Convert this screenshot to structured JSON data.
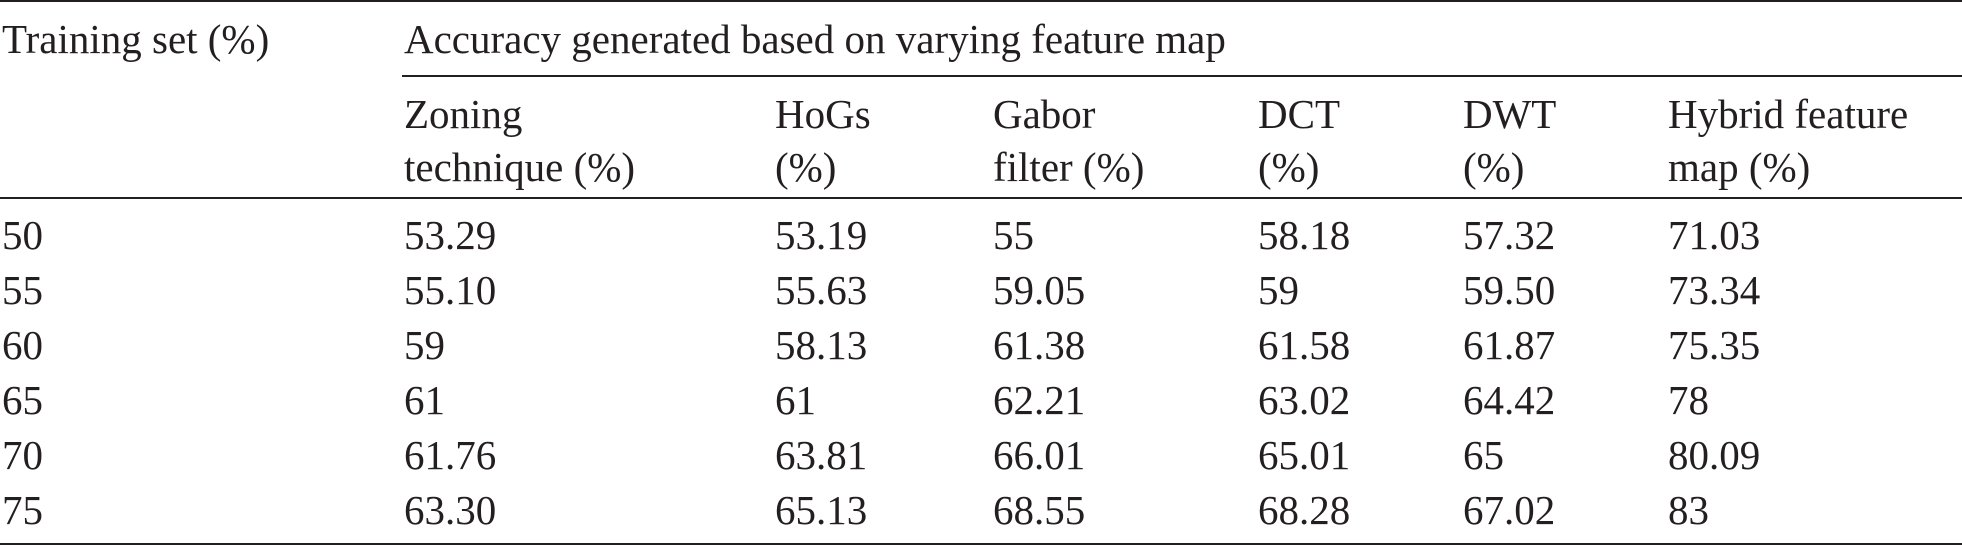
{
  "table": {
    "header": {
      "first_col": "Training set (%)",
      "span_label": "Accuracy generated based on varying feature map",
      "columns": [
        {
          "line1": "Zoning",
          "line2": "technique (%)"
        },
        {
          "line1": "HoGs",
          "line2": "(%)"
        },
        {
          "line1": "Gabor",
          "line2": "filter (%)"
        },
        {
          "line1": "DCT",
          "line2": "(%)"
        },
        {
          "line1": "DWT",
          "line2": "(%)"
        },
        {
          "line1": "Hybrid feature",
          "line2": "map (%)"
        }
      ]
    },
    "rows": [
      [
        "50",
        "53.29",
        "53.19",
        "55",
        "58.18",
        "57.32",
        "71.03"
      ],
      [
        "55",
        "55.10",
        "55.63",
        "59.05",
        "59",
        "59.50",
        "73.34"
      ],
      [
        "60",
        "59",
        "58.13",
        "61.38",
        "61.58",
        "61.87",
        "75.35"
      ],
      [
        "65",
        "61",
        "61",
        "62.21",
        "63.02",
        "64.42",
        "78"
      ],
      [
        "70",
        "61.76",
        "63.81",
        "66.01",
        "65.01",
        "65",
        "80.09"
      ],
      [
        "75",
        "63.30",
        "65.13",
        "68.55",
        "68.28",
        "67.02",
        "83"
      ]
    ]
  }
}
